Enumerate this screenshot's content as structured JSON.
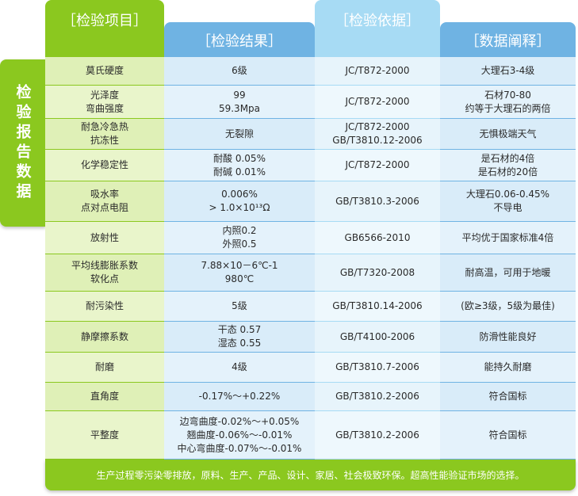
{
  "side_label": "检验报告数据",
  "headers": {
    "item": "［检验项目］",
    "result": "［检验结果］",
    "basis": "［检验依据］",
    "explain": "［数据阐释］"
  },
  "rows": [
    {
      "item": [
        "莫氏硬度"
      ],
      "result": [
        "6级"
      ],
      "basis": [
        "JC/T872-2000"
      ],
      "explain": [
        "大理石3-4级"
      ]
    },
    {
      "item": [
        "光泽度",
        "弯曲强度"
      ],
      "result": [
        "99",
        "59.3Mpa"
      ],
      "basis": [
        "JC/T872-2000"
      ],
      "explain": [
        "石材70-80",
        "约等于大理石的两倍"
      ]
    },
    {
      "item": [
        "耐急冷急热",
        "抗冻性"
      ],
      "result": [
        "无裂隙"
      ],
      "basis": [
        "JC/T872-2000",
        "GB/T3810.12-2006"
      ],
      "explain": [
        "无惧极端天气"
      ]
    },
    {
      "item": [
        "化学稳定性"
      ],
      "result": [
        "耐酸 0.05%",
        "耐碱 0.01%"
      ],
      "basis": [
        "JC/T872-2000"
      ],
      "explain": [
        "是石材的4倍",
        "是石材的20倍"
      ]
    },
    {
      "item": [
        "吸水率",
        "点对点电阻"
      ],
      "result": [
        "0.006%",
        "> 1.0×10¹³Ω"
      ],
      "basis": [
        "GB/T3810.3-2006"
      ],
      "explain": [
        "大理石0.06-0.45%",
        "不导电"
      ]
    },
    {
      "item": [
        "放射性"
      ],
      "result": [
        "内照0.2",
        "外照0.5"
      ],
      "basis": [
        "GB6566-2010"
      ],
      "explain": [
        "平均优于国家标准4倍"
      ]
    },
    {
      "item": [
        "平均线膨胀系数",
        "软化点"
      ],
      "result": [
        "7.88×10－6℃-1",
        "980℃"
      ],
      "basis": [
        "GB/T7320-2008"
      ],
      "explain": [
        "耐高温，可用于地暖"
      ]
    },
    {
      "item": [
        "耐污染性"
      ],
      "result": [
        "5级"
      ],
      "basis": [
        "GB/T3810.14-2006"
      ],
      "explain": [
        "(欧≥3级，5级为最佳)"
      ]
    },
    {
      "item": [
        "静摩擦系数"
      ],
      "result": [
        "干态 0.57",
        "湿态 0.55"
      ],
      "basis": [
        "GB/T4100-2006"
      ],
      "explain": [
        "防滑性能良好"
      ]
    },
    {
      "item": [
        "耐磨"
      ],
      "result": [
        "4级"
      ],
      "basis": [
        "GB/T3810.7-2006"
      ],
      "explain": [
        "能持久耐磨"
      ]
    },
    {
      "item": [
        "直角度"
      ],
      "result": [
        "-0.17%～+0.22%"
      ],
      "basis": [
        "GB/T3810.2-2006"
      ],
      "explain": [
        "符合国标"
      ]
    },
    {
      "item": [
        "平整度"
      ],
      "result": [
        "边弯曲度-0.02%～+0.05%",
        "翘曲度-0.06%～-0.01%",
        "中心弯曲度-0.07%～-0.01%"
      ],
      "basis": [
        "GB/T3810.2-2006"
      ],
      "explain": [
        "符合国标"
      ]
    }
  ],
  "footer": "生产过程零污染零排放，原料、生产、产品、设计、家居、社会极致环保。超高性能验证市场的选择。"
}
